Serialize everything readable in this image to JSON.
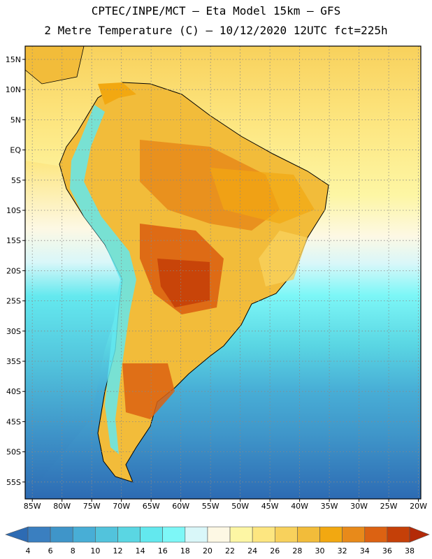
{
  "title": {
    "line1": "CPTEC/INPE/MCT –  Eta Model 15km – GFS",
    "line2": "2 Metre Temperature (C) – 10/12/2020 12UTC fct=225h"
  },
  "map": {
    "lat_labels": [
      "15N",
      "10N",
      "5N",
      "EQ",
      "5S",
      "10S",
      "15S",
      "20S",
      "25S",
      "30S",
      "35S",
      "40S",
      "45S",
      "50S",
      "55S"
    ],
    "lon_labels": [
      "85W",
      "80W",
      "75W",
      "70W",
      "65W",
      "60W",
      "55W",
      "50W",
      "45W",
      "40W",
      "35W",
      "30W",
      "25W",
      "20W"
    ],
    "lat_values": [
      15,
      10,
      5,
      0,
      -5,
      -10,
      -15,
      -20,
      -25,
      -30,
      -35,
      -40,
      -45,
      -50,
      -55
    ],
    "lon_values": [
      -85,
      -80,
      -75,
      -70,
      -65,
      -60,
      -55,
      -50,
      -45,
      -40,
      -35,
      -30,
      -25,
      -20
    ]
  },
  "colorbar": {
    "labels": [
      "4",
      "6",
      "8",
      "10",
      "12",
      "14",
      "16",
      "18",
      "20",
      "22",
      "24",
      "26",
      "28",
      "30",
      "32",
      "34",
      "36",
      "38"
    ],
    "colors": [
      "#2d6bb3",
      "#3a7fc0",
      "#3f95c9",
      "#48aed6",
      "#52c3dc",
      "#5ad6e3",
      "#63e8ee",
      "#7df7f7",
      "#d9f7f9",
      "#fdf8e4",
      "#fdf6a4",
      "#fde680",
      "#f8d15c",
      "#f2bc3a",
      "#f2a811",
      "#e88a1a",
      "#dc6212",
      "#c54008",
      "#b32a08"
    ]
  }
}
